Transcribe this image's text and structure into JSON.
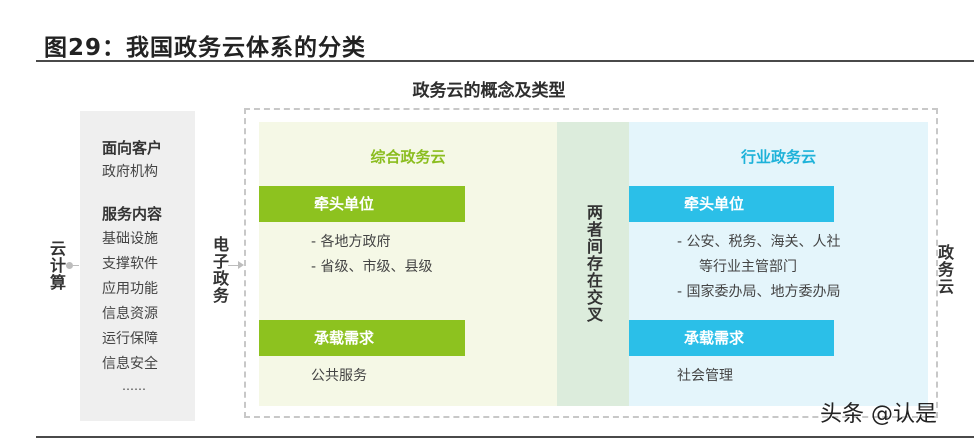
{
  "header": {
    "title": "图29：我国政务云体系的分类"
  },
  "diagram": {
    "title": "政务云的概念及类型",
    "cloud_computing": "云计算",
    "egov": "电子政务",
    "gov_cloud": "政务云",
    "cross_label": "两者间存在交叉",
    "left_panel": {
      "heading1": "面向客户",
      "customer": "政府机构",
      "heading2": "服务内容",
      "services": [
        "基础设施",
        "支撑软件",
        "应用功能",
        "信息资源",
        "运行保障",
        "信息安全",
        "……"
      ]
    },
    "integrated": {
      "title": "综合政务云",
      "lead_label": "牵头单位",
      "lead_items": [
        "-  各地方政府",
        "-  省级、市级、县级"
      ],
      "demand_label": "承载需求",
      "demand_value": "公共服务"
    },
    "industry": {
      "title": "行业政务云",
      "lead_label": "牵头单位",
      "lead_items": [
        "-  公安、税务、海关、人社",
        "等行业主管部门",
        "-  国家委办局、地方委办局"
      ],
      "demand_label": "承载需求",
      "demand_value": "社会管理"
    }
  },
  "watermark": "头条 @认是",
  "colors": {
    "green": "#8dc21f",
    "blue": "#2bbfe8",
    "green_bg": "#f5f8e6",
    "blue_bg": "#e4f5fb",
    "mid_bg": "#dcecdc"
  }
}
